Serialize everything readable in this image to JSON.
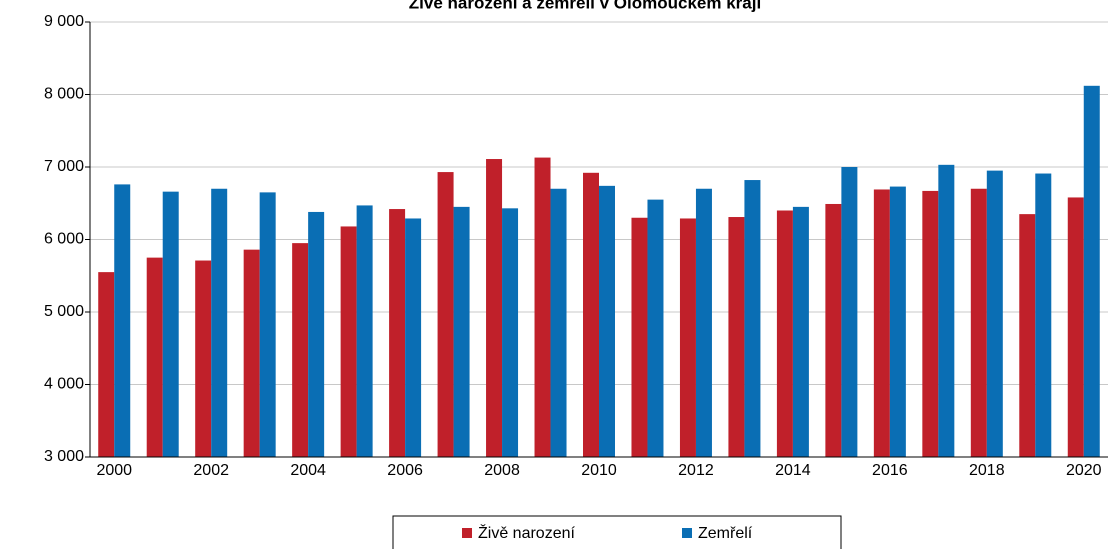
{
  "chart_data": {
    "type": "bar",
    "title": "Živě narození a zemřelí v Olomouckém kraji",
    "categories": [
      "2000",
      null,
      "2002",
      null,
      "2004",
      null,
      "2006",
      null,
      "2008",
      null,
      "2010",
      null,
      "2012",
      null,
      "2014",
      null,
      "2016",
      null,
      "2018",
      null,
      "2020"
    ],
    "series": [
      {
        "name": "Živě narození",
        "color": "#c0202a",
        "values": [
          5550,
          5750,
          5710,
          5860,
          5950,
          6180,
          6420,
          6930,
          7110,
          7130,
          6920,
          6300,
          6290,
          6310,
          6400,
          6490,
          6690,
          6670,
          6700,
          6350,
          6580
        ]
      },
      {
        "name": "Zemřelí",
        "color": "#0a6eb4",
        "values": [
          6760,
          6660,
          6700,
          6650,
          6380,
          6470,
          6290,
          6450,
          6430,
          6700,
          6740,
          6550,
          6700,
          6820,
          6450,
          7000,
          6730,
          7030,
          6950,
          6910,
          8120
        ]
      }
    ],
    "ylim": [
      3000,
      9000
    ],
    "yticks": [
      {
        "value": 3000,
        "label": "3 000"
      },
      {
        "value": 4000,
        "label": "4 000"
      },
      {
        "value": 5000,
        "label": "5 000"
      },
      {
        "value": 6000,
        "label": "6 000"
      },
      {
        "value": 7000,
        "label": "7 000"
      },
      {
        "value": 8000,
        "label": "8 000"
      },
      {
        "value": 9000,
        "label": "9 000"
      }
    ],
    "grid": true,
    "legend": "bottom"
  }
}
